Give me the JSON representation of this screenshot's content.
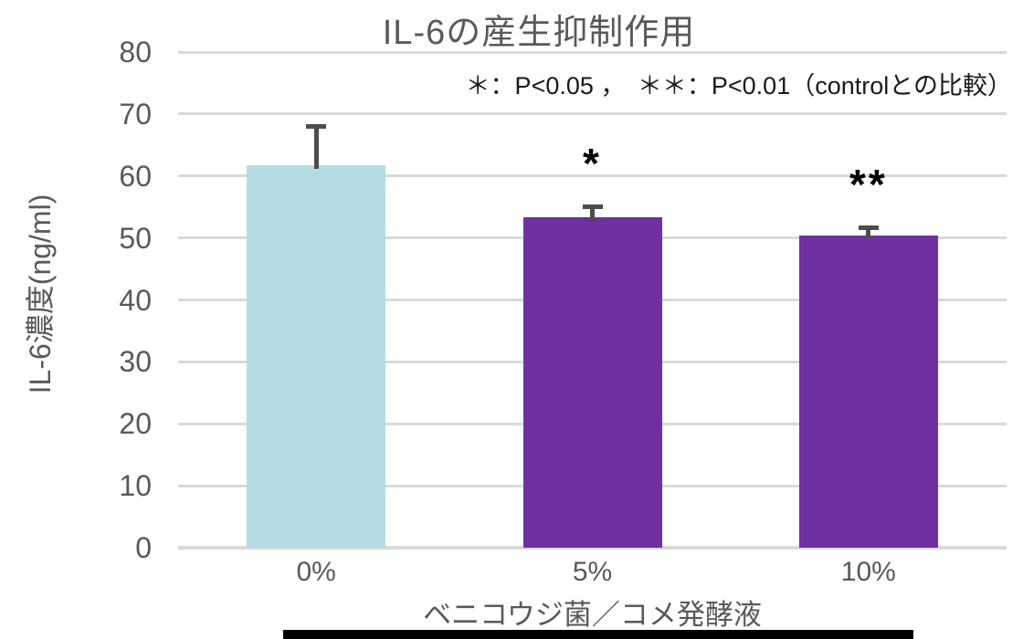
{
  "chart_data": {
    "type": "bar",
    "title": "IL-6の産生抑制作用",
    "significance_note": "＊：P<0.05 ，　＊＊：P<0.01（controlとの比較）",
    "ylabel": "IL-6濃度(ng/ml)",
    "xlabel": "ベニコウジ菌／コメ発酵液",
    "categories": [
      "0%",
      "5%",
      "10%"
    ],
    "values": [
      61.7,
      53.4,
      50.4
    ],
    "errors": [
      6.2,
      1.6,
      1.1
    ],
    "significance": [
      "",
      "*",
      "**"
    ],
    "ylim": [
      0,
      80
    ],
    "yticks": [
      0,
      10,
      20,
      30,
      40,
      50,
      60,
      70,
      80
    ],
    "grid": true,
    "legend": "none",
    "bar_colors": [
      "#b5dce2",
      "#7030a0",
      "#7030a0"
    ],
    "colors": {
      "control_bar": "#b5dce2",
      "treatment_bar": "#7030a0",
      "gridline": "#d9d9d9",
      "axis_text": "#595959",
      "title_text": "#595959",
      "note_text": "#1a1a1a",
      "error_bar": "#4d4d4d",
      "significance_marker": "#000000",
      "bottom_underline": "#000000",
      "background": "#ffffff"
    }
  }
}
